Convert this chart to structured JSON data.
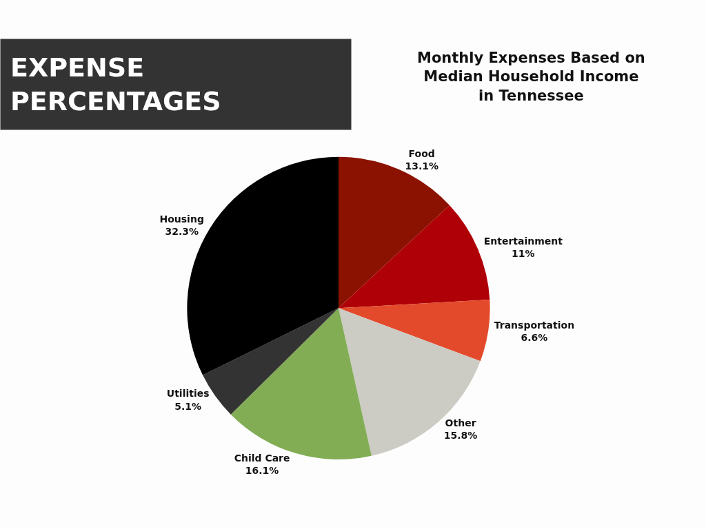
{
  "chart_data": {
    "type": "pie",
    "title": "EXPENSE PERCENTAGES",
    "subtitle": "Monthly Expenses Based on Median Household Income in Tennessee",
    "categories": [
      "Food",
      "Entertainment",
      "Transportation",
      "Other",
      "Child Care",
      "Utilities",
      "Housing"
    ],
    "values": [
      13.1,
      11,
      6.6,
      15.8,
      16.1,
      5.1,
      32.3
    ],
    "value_labels": [
      "13.1%",
      "11%",
      "6.6%",
      "15.8%",
      "16.1%",
      "5.1%",
      "32.3%"
    ],
    "colors": [
      "#8b1200",
      "#b00007",
      "#e34a2c",
      "#cccbc4",
      "#82ad55",
      "#333333",
      "#000000"
    ],
    "legend": false
  }
}
